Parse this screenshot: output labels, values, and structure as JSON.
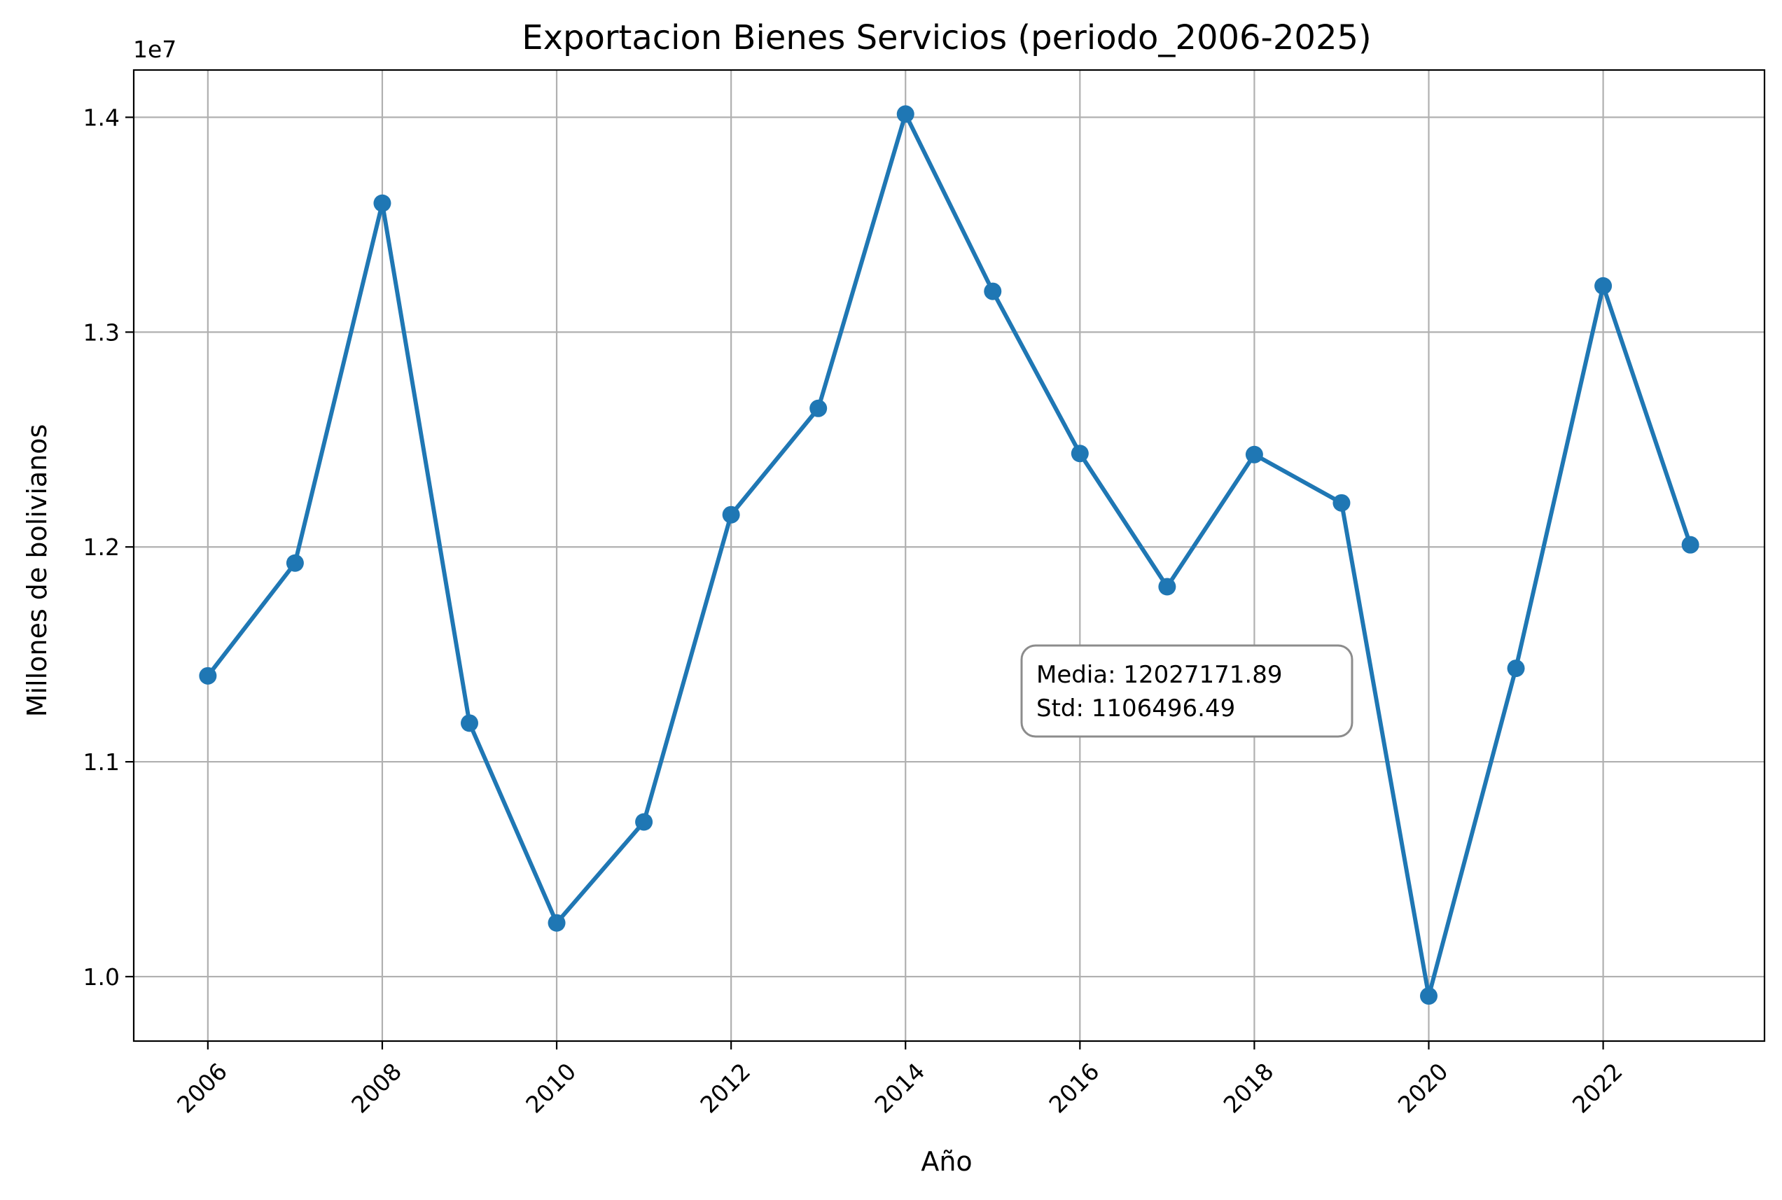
{
  "chart_data": {
    "type": "line",
    "title": "Exportacion Bienes Servicios (periodo_2006-2025)",
    "xlabel": "Año",
    "ylabel": "Millones de bolivianos",
    "y_offset_label": "1e7",
    "y_scale_factor": 10000000,
    "xlim": [
      2005.15,
      2023.85
    ],
    "ylim": [
      9700000,
      14220000
    ],
    "x_ticks": [
      2006,
      2008,
      2010,
      2012,
      2014,
      2016,
      2018,
      2020,
      2022
    ],
    "x_tick_labels": [
      "2006",
      "2008",
      "2010",
      "2012",
      "2014",
      "2016",
      "2018",
      "2020",
      "2022"
    ],
    "y_ticks": [
      10000000,
      11000000,
      12000000,
      13000000,
      14000000
    ],
    "y_tick_labels": [
      "1.0",
      "1.1",
      "1.2",
      "1.3",
      "1.4"
    ],
    "grid": true,
    "series": [
      {
        "color": "#1f77b4",
        "x": [
          2006,
          2007,
          2008,
          2009,
          2010,
          2011,
          2012,
          2013,
          2014,
          2015,
          2016,
          2017,
          2018,
          2019,
          2020,
          2021,
          2022,
          2023
        ],
        "values": [
          11400000,
          11925000,
          13600000,
          11180000,
          10250000,
          10720000,
          12150000,
          12645000,
          14015000,
          13190000,
          12435000,
          11815000,
          12430000,
          12205000,
          9910000,
          11435000,
          13215000,
          12010000
        ]
      }
    ],
    "annotation": {
      "lines": [
        "Media: 12027171.89",
        "Std: 1106496.49"
      ]
    }
  }
}
